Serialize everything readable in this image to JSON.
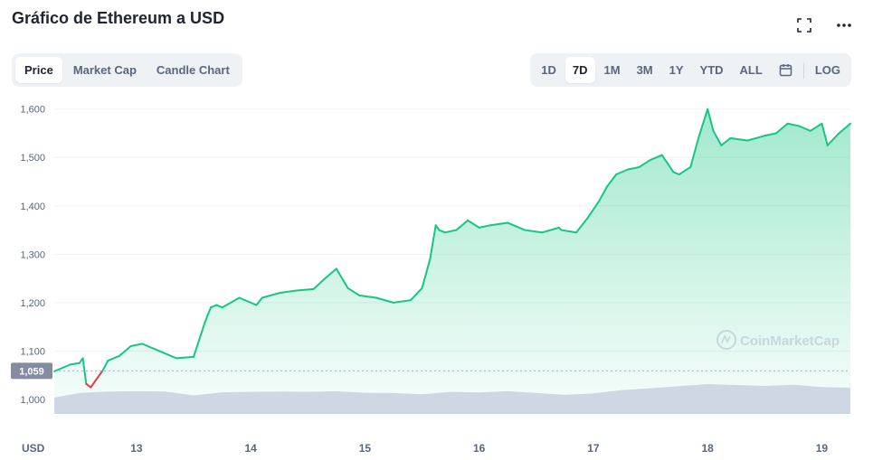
{
  "header": {
    "title": "Gráfico de Ethereum a USD",
    "fullscreen_icon": "fullscreen-icon",
    "more_icon": "more-horizontal-icon"
  },
  "view_tabs": [
    {
      "label": "Price",
      "active": true
    },
    {
      "label": "Market Cap",
      "active": false
    },
    {
      "label": "Candle Chart",
      "active": false
    }
  ],
  "range_tabs": [
    {
      "label": "1D",
      "active": false
    },
    {
      "label": "7D",
      "active": true
    },
    {
      "label": "1M",
      "active": false
    },
    {
      "label": "3M",
      "active": false
    },
    {
      "label": "1Y",
      "active": false
    },
    {
      "label": "YTD",
      "active": false
    },
    {
      "label": "ALL",
      "active": false
    }
  ],
  "calendar_icon": "calendar-icon",
  "log_label": "LOG",
  "watermark": "CoinMarketCap",
  "colors": {
    "up": "#16c784",
    "down": "#ea3943",
    "volume": "#cfd6e4",
    "grid": "#eff2f5",
    "baseline_label_bg": "#858ca2"
  },
  "chart_data": {
    "type": "line",
    "xlabel": "",
    "ylabel": "USD",
    "currency_label": "USD",
    "baseline_value": 1059,
    "baseline_label": "1,059",
    "ylim": [
      970,
      1620
    ],
    "y_ticks": [
      1000,
      1100,
      1200,
      1300,
      1400,
      1500,
      1600
    ],
    "y_tick_labels": [
      "1,000",
      "1,100",
      "1,200",
      "1,300",
      "1,400",
      "1,500",
      "1,600"
    ],
    "xlim": [
      12.28,
      19.25
    ],
    "x_ticks": [
      13,
      14,
      15,
      16,
      17,
      18,
      19
    ],
    "x_tick_labels": [
      "13",
      "14",
      "15",
      "16",
      "17",
      "18",
      "19"
    ],
    "grid": true,
    "series": [
      {
        "name": "",
        "x": [
          12.28,
          12.35,
          12.42,
          12.5,
          12.53,
          12.56,
          12.6,
          12.65,
          12.7,
          12.75,
          12.85,
          12.95,
          13.05,
          13.2,
          13.35,
          13.5,
          13.6,
          13.65,
          13.7,
          13.75,
          13.9,
          14.05,
          14.1,
          14.25,
          14.4,
          14.55,
          14.65,
          14.75,
          14.85,
          14.95,
          15.1,
          15.25,
          15.4,
          15.5,
          15.57,
          15.62,
          15.65,
          15.7,
          15.8,
          15.9,
          16.0,
          16.1,
          16.25,
          16.4,
          16.55,
          16.7,
          16.72,
          16.85,
          16.95,
          17.05,
          17.12,
          17.2,
          17.3,
          17.4,
          17.5,
          17.6,
          17.7,
          17.75,
          17.85,
          17.92,
          18.0,
          18.05,
          18.12,
          18.2,
          18.35,
          18.5,
          18.6,
          18.7,
          18.8,
          18.9,
          19.0,
          19.05,
          19.15,
          19.25
        ],
        "y": [
          1058,
          1065,
          1072,
          1075,
          1085,
          1032,
          1025,
          1042,
          1058,
          1080,
          1090,
          1110,
          1115,
          1100,
          1085,
          1088,
          1160,
          1190,
          1195,
          1190,
          1210,
          1195,
          1210,
          1220,
          1225,
          1228,
          1250,
          1270,
          1230,
          1215,
          1210,
          1200,
          1205,
          1230,
          1290,
          1360,
          1350,
          1345,
          1350,
          1370,
          1355,
          1360,
          1365,
          1350,
          1345,
          1355,
          1350,
          1345,
          1375,
          1410,
          1440,
          1465,
          1475,
          1480,
          1495,
          1505,
          1470,
          1465,
          1480,
          1540,
          1600,
          1555,
          1525,
          1540,
          1535,
          1545,
          1550,
          1570,
          1565,
          1555,
          1570,
          1525,
          1550,
          1570
        ]
      }
    ],
    "volume": {
      "x": [
        12.28,
        12.5,
        12.75,
        13.0,
        13.25,
        13.5,
        13.75,
        14.0,
        14.25,
        14.5,
        14.75,
        15.0,
        15.25,
        15.5,
        15.75,
        16.0,
        16.25,
        16.5,
        16.75,
        17.0,
        17.25,
        17.5,
        17.75,
        18.0,
        18.25,
        18.5,
        18.75,
        19.0,
        19.25
      ],
      "values": [
        0.55,
        0.7,
        0.75,
        0.76,
        0.75,
        0.62,
        0.72,
        0.74,
        0.75,
        0.74,
        0.76,
        0.71,
        0.7,
        0.66,
        0.74,
        0.72,
        0.76,
        0.7,
        0.64,
        0.69,
        0.8,
        0.86,
        0.93,
        1.0,
        0.97,
        0.94,
        0.98,
        0.9,
        0.88
      ]
    }
  }
}
